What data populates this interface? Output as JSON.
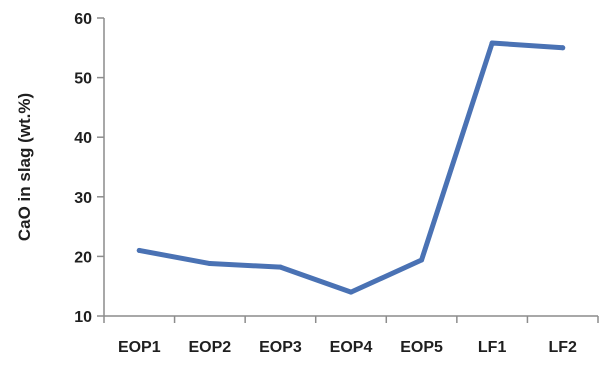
{
  "chart_data": {
    "type": "line",
    "title": "",
    "xlabel": "",
    "ylabel": "CaO in slag (wt.%)",
    "categories": [
      "EOP1",
      "EOP2",
      "EOP3",
      "EOP4",
      "EOP5",
      "LF1",
      "LF2"
    ],
    "series": [
      {
        "values": [
          21,
          18.8,
          18.2,
          14,
          19.4,
          55.8,
          55
        ]
      }
    ],
    "ylim": [
      10,
      60
    ],
    "yticks": [
      10,
      20,
      30,
      40,
      50,
      60
    ],
    "grid": false,
    "legend": "none",
    "colors": {
      "line": "#4a72b4",
      "axis": "#8c8c8c"
    }
  }
}
